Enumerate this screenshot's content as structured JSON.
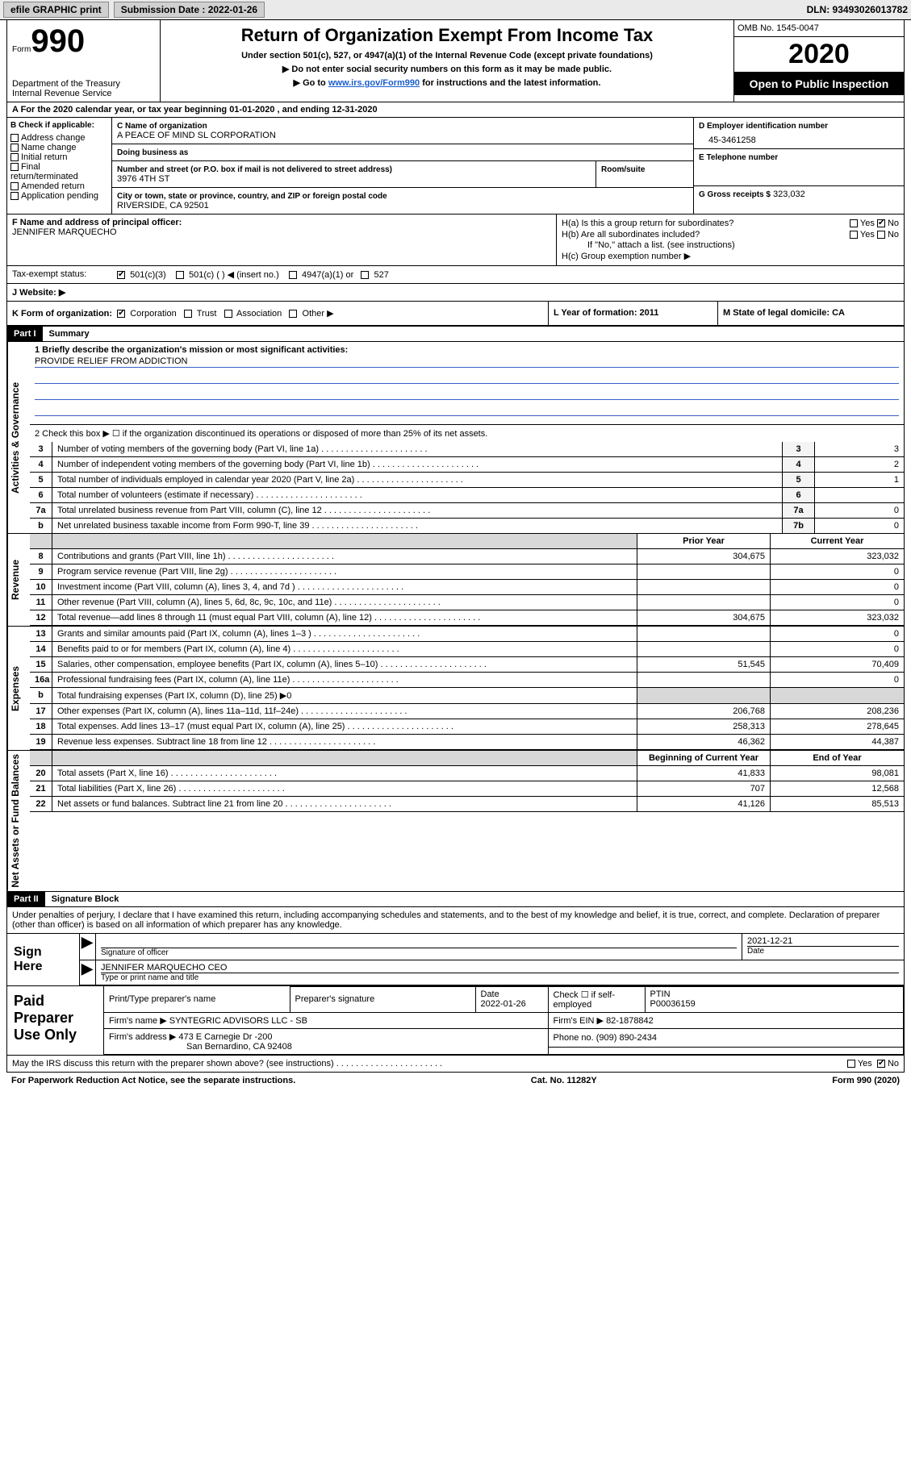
{
  "top_bar": {
    "efile_label": "efile GRAPHIC print",
    "submission_label": "Submission Date : 2022-01-26",
    "dln_label": "DLN: 93493026013782"
  },
  "header": {
    "form_small": "Form",
    "form_big": "990",
    "dept": "Department of the Treasury",
    "irs": "Internal Revenue Service",
    "title": "Return of Organization Exempt From Income Tax",
    "sub1": "Under section 501(c), 527, or 4947(a)(1) of the Internal Revenue Code (except private foundations)",
    "sub2": "▶ Do not enter social security numbers on this form as it may be made public.",
    "sub3_pre": "▶ Go to ",
    "sub3_link": "www.irs.gov/Form990",
    "sub3_post": " for instructions and the latest information.",
    "omb": "OMB No. 1545-0047",
    "year": "2020",
    "otp": "Open to Public Inspection"
  },
  "lineA": "A For the 2020 calendar year, or tax year beginning 01-01-2020    , and ending 12-31-2020",
  "B": {
    "label": "B Check if applicable:",
    "items": [
      "Address change",
      "Name change",
      "Initial return",
      "Final return/terminated",
      "Amended return",
      "Application pending"
    ]
  },
  "C": {
    "name_label": "C Name of organization",
    "name": "A PEACE OF MIND SL CORPORATION",
    "dba_label": "Doing business as",
    "dba": "",
    "street_label": "Number and street (or P.O. box if mail is not delivered to street address)",
    "room_label": "Room/suite",
    "street": "3976 4TH ST",
    "city_label": "City or town, state or province, country, and ZIP or foreign postal code",
    "city": "RIVERSIDE, CA  92501"
  },
  "D": {
    "label": "D Employer identification number",
    "value": "45-3461258"
  },
  "E": {
    "label": "E Telephone number",
    "value": ""
  },
  "G": {
    "label": "G Gross receipts $",
    "value": "323,032"
  },
  "F": {
    "label": "F  Name and address of principal officer:",
    "value": "JENNIFER MARQUECHO"
  },
  "H": {
    "a": "H(a)  Is this a group return for subordinates?",
    "a_yes": "Yes",
    "a_no": "No",
    "b": "H(b)  Are all subordinates included?",
    "b_note": "If \"No,\" attach a list. (see instructions)",
    "c": "H(c)  Group exemption number ▶"
  },
  "I": "Tax-exempt status:",
  "I_opts": [
    "501(c)(3)",
    "501(c) (  ) ◀ (insert no.)",
    "4947(a)(1) or",
    "527"
  ],
  "J": "J  Website: ▶",
  "K": "K Form of organization:",
  "K_opts": [
    "Corporation",
    "Trust",
    "Association",
    "Other ▶"
  ],
  "L": "L Year of formation: 2011",
  "M": "M State of legal domicile: CA",
  "PartI": {
    "hdr": "Part I",
    "title": "Summary",
    "groups": [
      {
        "side": "Activities & Governance",
        "mission_q": "1  Briefly describe the organization's mission or most significant activities:",
        "mission": "PROVIDE RELIEF FROM ADDICTION",
        "box2": "2  Check this box ▶ ☐  if the organization discontinued its operations or disposed of more than 25% of its net assets.",
        "lines": [
          {
            "n": "3",
            "txt": "Number of voting members of the governing body (Part VI, line 1a)",
            "rn": "3",
            "val": "3"
          },
          {
            "n": "4",
            "txt": "Number of independent voting members of the governing body (Part VI, line 1b)",
            "rn": "4",
            "val": "2"
          },
          {
            "n": "5",
            "txt": "Total number of individuals employed in calendar year 2020 (Part V, line 2a)",
            "rn": "5",
            "val": "1"
          },
          {
            "n": "6",
            "txt": "Total number of volunteers (estimate if necessary)",
            "rn": "6",
            "val": ""
          },
          {
            "n": "7a",
            "txt": "Total unrelated business revenue from Part VIII, column (C), line 12",
            "rn": "7a",
            "val": "0"
          },
          {
            "n": "b",
            "txt": "Net unrelated business taxable income from Form 990-T, line 39",
            "rn": "7b",
            "val": "0"
          }
        ]
      },
      {
        "side": "Revenue",
        "head_prior": "Prior Year",
        "head_curr": "Current Year",
        "lines": [
          {
            "n": "8",
            "txt": "Contributions and grants (Part VIII, line 1h)",
            "prior": "304,675",
            "curr": "323,032"
          },
          {
            "n": "9",
            "txt": "Program service revenue (Part VIII, line 2g)",
            "prior": "",
            "curr": "0"
          },
          {
            "n": "10",
            "txt": "Investment income (Part VIII, column (A), lines 3, 4, and 7d )",
            "prior": "",
            "curr": "0"
          },
          {
            "n": "11",
            "txt": "Other revenue (Part VIII, column (A), lines 5, 6d, 8c, 9c, 10c, and 11e)",
            "prior": "",
            "curr": "0"
          },
          {
            "n": "12",
            "txt": "Total revenue—add lines 8 through 11 (must equal Part VIII, column (A), line 12)",
            "prior": "304,675",
            "curr": "323,032"
          }
        ]
      },
      {
        "side": "Expenses",
        "lines": [
          {
            "n": "13",
            "txt": "Grants and similar amounts paid (Part IX, column (A), lines 1–3 )",
            "prior": "",
            "curr": "0"
          },
          {
            "n": "14",
            "txt": "Benefits paid to or for members (Part IX, column (A), line 4)",
            "prior": "",
            "curr": "0"
          },
          {
            "n": "15",
            "txt": "Salaries, other compensation, employee benefits (Part IX, column (A), lines 5–10)",
            "prior": "51,545",
            "curr": "70,409"
          },
          {
            "n": "16a",
            "txt": "Professional fundraising fees (Part IX, column (A), line 11e)",
            "prior": "",
            "curr": "0"
          },
          {
            "n": "b",
            "txt": "Total fundraising expenses (Part IX, column (D), line 25) ▶0",
            "shade": true
          },
          {
            "n": "17",
            "txt": "Other expenses (Part IX, column (A), lines 11a–11d, 11f–24e)",
            "prior": "206,768",
            "curr": "208,236"
          },
          {
            "n": "18",
            "txt": "Total expenses. Add lines 13–17 (must equal Part IX, column (A), line 25)",
            "prior": "258,313",
            "curr": "278,645"
          },
          {
            "n": "19",
            "txt": "Revenue less expenses. Subtract line 18 from line 12",
            "prior": "46,362",
            "curr": "44,387"
          }
        ]
      },
      {
        "side": "Net Assets or Fund Balances",
        "head_prior": "Beginning of Current Year",
        "head_curr": "End of Year",
        "lines": [
          {
            "n": "20",
            "txt": "Total assets (Part X, line 16)",
            "prior": "41,833",
            "curr": "98,081"
          },
          {
            "n": "21",
            "txt": "Total liabilities (Part X, line 26)",
            "prior": "707",
            "curr": "12,568"
          },
          {
            "n": "22",
            "txt": "Net assets or fund balances. Subtract line 21 from line 20",
            "prior": "41,126",
            "curr": "85,513"
          }
        ]
      }
    ]
  },
  "PartII": {
    "hdr": "Part II",
    "title": "Signature Block",
    "perjury": "Under penalties of perjury, I declare that I have examined this return, including accompanying schedules and statements, and to the best of my knowledge and belief, it is true, correct, and complete. Declaration of preparer (other than officer) is based on all information of which preparer has any knowledge."
  },
  "sign": {
    "here": "Sign Here",
    "sig_label": "Signature of officer",
    "date": "2021-12-21",
    "date_label": "Date",
    "name": "JENNIFER MARQUECHO CEO",
    "name_label": "Type or print name and title"
  },
  "prep": {
    "here": "Paid Preparer Use Only",
    "h_name": "Print/Type preparer's name",
    "h_sig": "Preparer's signature",
    "h_date": "Date",
    "date": "2022-01-26",
    "h_check": "Check ☐ if self-employed",
    "h_ptin": "PTIN",
    "ptin": "P00036159",
    "firm_label": "Firm's name      ▶",
    "firm": "SYNTEGRIC ADVISORS LLC - SB",
    "ein_label": "Firm's EIN ▶",
    "ein": "82-1878842",
    "addr_label": "Firm's address ▶",
    "addr1": "473 E Carnegie Dr -200",
    "addr2": "San Bernardino, CA  92408",
    "phone_label": "Phone no.",
    "phone": "(909) 890-2434"
  },
  "discuss": {
    "q": "May the IRS discuss this return with the preparer shown above? (see instructions)",
    "yes": "Yes",
    "no": "No"
  },
  "footer": {
    "left": "For Paperwork Reduction Act Notice, see the separate instructions.",
    "mid": "Cat. No. 11282Y",
    "right": "Form 990 (2020)"
  },
  "colors": {
    "link_blue": "#1a5ecc",
    "rule_blue": "#3a60c8",
    "shade": "#d8d8d8"
  }
}
